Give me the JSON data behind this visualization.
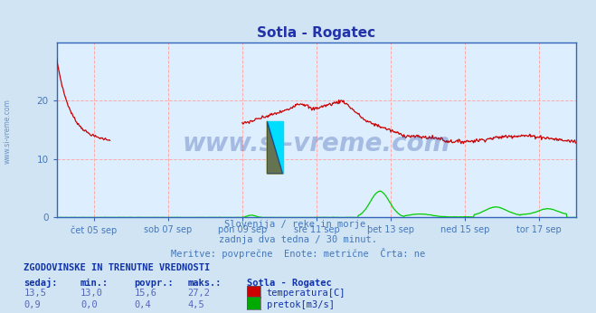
{
  "title": "Sotla - Rogatec",
  "bg_color": "#d0e4f4",
  "plot_bg_color": "#ddeeff",
  "grid_color": "#ffaaaa",
  "xlim": [
    0,
    672
  ],
  "ylim": [
    0,
    30
  ],
  "yticks": [
    0,
    10,
    20
  ],
  "xlabel_ticks": [
    48,
    144,
    240,
    336,
    432,
    528,
    624
  ],
  "xlabel_labels": [
    "čet 05 sep",
    "sob 07 sep",
    "pon 09 sep",
    "sre 11 sep",
    "pet 13 sep",
    "ned 15 sep",
    "tor 17 sep"
  ],
  "watermark": "www.si-vreme.com",
  "watermark_color": "#1a3a9a",
  "watermark_alpha": 0.28,
  "side_text": "www.si-vreme.com",
  "subtitle_lines": [
    "Slovenija / reke in morje.",
    "zadnja dva tedna / 30 minut.",
    "Meritve: povprečne  Enote: metrične  Črta: ne"
  ],
  "subtitle_color": "#4477bb",
  "footer_title": "ZGODOVINSKE IN TRENUTNE VREDNOSTI",
  "footer_cols": [
    "sedaj:",
    "min.:",
    "povpr.:",
    "maks.:"
  ],
  "footer_station": "Sotla - Rogatec",
  "footer_rows": [
    {
      "values": [
        "13,5",
        "13,0",
        "15,6",
        "27,2"
      ],
      "color": "#cc0000",
      "label": "temperatura[C]"
    },
    {
      "values": [
        "0,9",
        "0,0",
        "0,4",
        "4,5"
      ],
      "color": "#00aa00",
      "label": "pretok[m3/s]"
    }
  ],
  "temp_color": "#cc0000",
  "flow_color": "#00cc00",
  "sidebar_text_color": "#4477bb",
  "axis_color": "#3366bb",
  "tick_color": "#4477bb",
  "title_color": "#2233aa"
}
